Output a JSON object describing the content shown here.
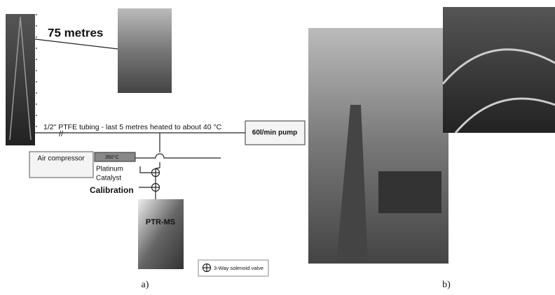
{
  "panel_a": {
    "caption": "a)",
    "height_label": "75 metres",
    "tubing_label": "1/2\" PTFE tubing - last 5 metres heated to about 40 °C",
    "pump": "60l/min pump",
    "compressor": "Air compressor",
    "catalyst_temp": "350°C",
    "catalyst": [
      "Platinum",
      "Catalyst"
    ],
    "calibration": "Calibration",
    "instrument": "PTR-MS",
    "legend": "3-Way solenoid valve"
  },
  "panel_b": {
    "caption": "b)"
  }
}
